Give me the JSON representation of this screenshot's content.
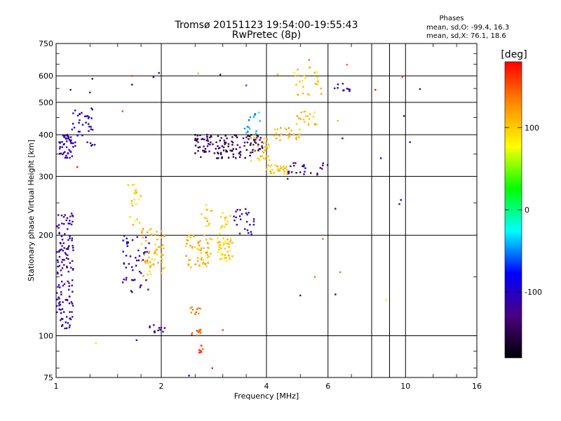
{
  "chart_data": {
    "type": "scatter",
    "title": "Tromsø 20151123 19:54:00-19:55:43",
    "subtitle": "RwPretec (8p)",
    "xlabel": "Frequency [MHz]",
    "ylabel": "Stationary phase Virtual Height [km]",
    "x_scale": "log",
    "y_scale": "log",
    "xlim": [
      1,
      16
    ],
    "ylim": [
      75,
      750
    ],
    "x_ticks": [
      1,
      2,
      4,
      6,
      10,
      16
    ],
    "y_ticks": [
      75,
      100,
      200,
      300,
      400,
      500,
      600,
      750
    ],
    "x_grid": [
      2,
      4,
      6,
      8,
      9,
      10
    ],
    "y_grid": [
      100,
      200,
      300,
      400,
      500,
      600
    ],
    "stats": {
      "header": "Phases",
      "line_o": "mean, sd,O: -99.4, 16.3",
      "line_x": "mean, sd,X:  76.1, 18.6"
    },
    "colorbar": {
      "label": "[deg]",
      "range": [
        -180,
        180
      ],
      "ticks": [
        100,
        0,
        -100
      ],
      "colors": [
        "#000000",
        "#4b0082",
        "#0000ff",
        "#00ffff",
        "#00ff00",
        "#ffff00",
        "#ff8c00",
        "#ff0000"
      ]
    },
    "clusters": [
      {
        "x": [
          1.0,
          1.12
        ],
        "y": [
          105,
          235
        ],
        "phase": -115,
        "n": 140
      },
      {
        "x": [
          1.02,
          1.12
        ],
        "y": [
          340,
          400
        ],
        "phase": -110,
        "n": 45
      },
      {
        "x": [
          1.1,
          1.3
        ],
        "y": [
          370,
          480
        ],
        "phase": -110,
        "n": 40
      },
      {
        "x": [
          1.55,
          1.85
        ],
        "y": [
          135,
          200
        ],
        "phase": -110,
        "n": 50
      },
      {
        "x": [
          1.6,
          1.75
        ],
        "y": [
          210,
          290
        ],
        "phase": 100,
        "n": 20
      },
      {
        "x": [
          1.75,
          2.05
        ],
        "y": [
          150,
          210
        ],
        "phase": 110,
        "n": 60
      },
      {
        "x": [
          1.85,
          2.05
        ],
        "y": [
          102,
          108
        ],
        "phase": -115,
        "n": 12
      },
      {
        "x": [
          2.35,
          2.8
        ],
        "y": [
          160,
          200
        ],
        "phase": 112,
        "n": 60
      },
      {
        "x": [
          2.6,
          2.8
        ],
        "y": [
          205,
          250
        ],
        "phase": 108,
        "n": 12
      },
      {
        "x": [
          2.4,
          2.6
        ],
        "y": [
          115,
          122
        ],
        "phase": 135,
        "n": 10
      },
      {
        "x": [
          2.4,
          2.6
        ],
        "y": [
          100,
          105
        ],
        "phase": 150,
        "n": 10
      },
      {
        "x": [
          2.55,
          2.65
        ],
        "y": [
          89,
          95
        ],
        "phase": 155,
        "n": 8
      },
      {
        "x": [
          2.9,
          3.2
        ],
        "y": [
          165,
          235
        ],
        "phase": 100,
        "n": 55
      },
      {
        "x": [
          3.2,
          3.7
        ],
        "y": [
          200,
          240
        ],
        "phase": -115,
        "n": 25
      },
      {
        "x": [
          2.5,
          3.9
        ],
        "y": [
          340,
          400
        ],
        "phase": -145,
        "n": 130
      },
      {
        "x": [
          3.6,
          4.1
        ],
        "y": [
          330,
          395
        ],
        "phase": 105,
        "n": 30
      },
      {
        "x": [
          3.4,
          3.9
        ],
        "y": [
          400,
          480
        ],
        "phase": -40,
        "n": 15
      },
      {
        "x": [
          4.0,
          4.6
        ],
        "y": [
          305,
          325
        ],
        "phase": 110,
        "n": 30
      },
      {
        "x": [
          4.6,
          6.0
        ],
        "y": [
          300,
          330
        ],
        "phase": -120,
        "n": 25
      },
      {
        "x": [
          4.2,
          5.0
        ],
        "y": [
          385,
          420
        ],
        "phase": 110,
        "n": 25
      },
      {
        "x": [
          4.8,
          5.6
        ],
        "y": [
          420,
          470
        ],
        "phase": 110,
        "n": 20
      },
      {
        "x": [
          4.8,
          5.8
        ],
        "y": [
          520,
          640
        ],
        "phase": 105,
        "n": 25
      },
      {
        "x": [
          6.2,
          7.0
        ],
        "y": [
          535,
          575
        ],
        "phase": -100,
        "n": 10
      }
    ],
    "scatter_points": [
      {
        "x": 1.1,
        "y": 545,
        "phase": -120
      },
      {
        "x": 1.27,
        "y": 588,
        "phase": -120
      },
      {
        "x": 1.25,
        "y": 535,
        "phase": -120
      },
      {
        "x": 1.65,
        "y": 600,
        "phase": 160
      },
      {
        "x": 1.65,
        "y": 565,
        "phase": -120
      },
      {
        "x": 1.9,
        "y": 595,
        "phase": -120
      },
      {
        "x": 1.97,
        "y": 612,
        "phase": -120
      },
      {
        "x": 1.55,
        "y": 470,
        "phase": 150
      },
      {
        "x": 1.15,
        "y": 320,
        "phase": 170
      },
      {
        "x": 2.55,
        "y": 610,
        "phase": 110
      },
      {
        "x": 2.95,
        "y": 605,
        "phase": -120
      },
      {
        "x": 3.5,
        "y": 562,
        "phase": -60
      },
      {
        "x": 4.3,
        "y": 605,
        "phase": 110
      },
      {
        "x": 5.3,
        "y": 670,
        "phase": 145
      },
      {
        "x": 6.8,
        "y": 648,
        "phase": 145
      },
      {
        "x": 8.2,
        "y": 545,
        "phase": 170
      },
      {
        "x": 9.8,
        "y": 595,
        "phase": 150
      },
      {
        "x": 11.0,
        "y": 548,
        "phase": -120
      },
      {
        "x": 9.9,
        "y": 455,
        "phase": -120
      },
      {
        "x": 10.3,
        "y": 380,
        "phase": -120
      },
      {
        "x": 8.5,
        "y": 340,
        "phase": -80
      },
      {
        "x": 9.7,
        "y": 255,
        "phase": -120
      },
      {
        "x": 9.6,
        "y": 248,
        "phase": -120
      },
      {
        "x": 6.3,
        "y": 240,
        "phase": -120
      },
      {
        "x": 6.6,
        "y": 390,
        "phase": -120
      },
      {
        "x": 6.4,
        "y": 440,
        "phase": 110
      },
      {
        "x": 5.5,
        "y": 150,
        "phase": 140
      },
      {
        "x": 6.5,
        "y": 155,
        "phase": 140
      },
      {
        "x": 6.3,
        "y": 133,
        "phase": -120
      },
      {
        "x": 5.0,
        "y": 132,
        "phase": -120
      },
      {
        "x": 8.8,
        "y": 128,
        "phase": 70
      },
      {
        "x": 2.8,
        "y": 80,
        "phase": 170
      },
      {
        "x": 2.4,
        "y": 76,
        "phase": -120
      },
      {
        "x": 3.0,
        "y": 104,
        "phase": 155
      },
      {
        "x": 1.3,
        "y": 95,
        "phase": 90
      },
      {
        "x": 1.7,
        "y": 97,
        "phase": -120
      },
      {
        "x": 4.6,
        "y": 295,
        "phase": -120
      },
      {
        "x": 5.8,
        "y": 195,
        "phase": 140
      }
    ]
  }
}
